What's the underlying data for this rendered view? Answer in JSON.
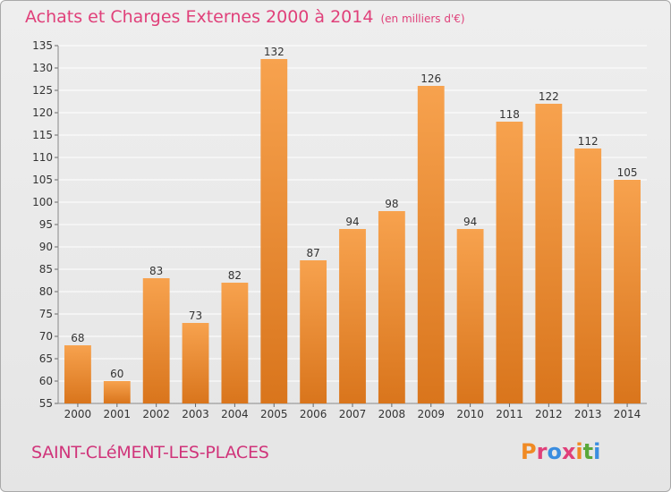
{
  "header": {
    "title": "Achats et Charges Externes 2000 à 2014",
    "unit": "(en milliers d'€)"
  },
  "footer": {
    "commune": "SAINT-CLéMENT-LES-PLACES",
    "logo_text": "Proxiti",
    "logo_colors": [
      "#f08a24",
      "#e0407a",
      "#3a8de0",
      "#e0407a",
      "#f08a24",
      "#5aa83a",
      "#3a8de0"
    ]
  },
  "colors": {
    "title": "#e0407a",
    "bar_top": "#f7a24e",
    "bar_bottom": "#d9751c",
    "grid": "#ffffff"
  },
  "chart_data": {
    "type": "bar",
    "categories": [
      "2000",
      "2001",
      "2002",
      "2003",
      "2004",
      "2005",
      "2006",
      "2007",
      "2008",
      "2009",
      "2010",
      "2011",
      "2012",
      "2013",
      "2014"
    ],
    "values": [
      68,
      60,
      83,
      73,
      82,
      132,
      87,
      94,
      98,
      126,
      94,
      118,
      122,
      112,
      105
    ],
    "ylim": [
      55,
      135
    ],
    "yticks": [
      55,
      60,
      65,
      70,
      75,
      80,
      85,
      90,
      95,
      100,
      105,
      110,
      115,
      120,
      125,
      130,
      135
    ],
    "grid": true,
    "data_labels": true
  }
}
